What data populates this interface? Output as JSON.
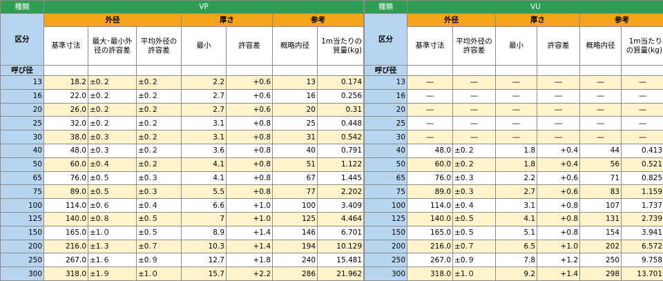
{
  "left": {
    "kind_label": "種類",
    "type_label": "VP",
    "group_outer": "外径",
    "group_thickness": "厚さ",
    "group_reference": "参考",
    "section_label": "区分",
    "col_std": "基準寸法",
    "col_maxmin": "最大･最小外径の許容差",
    "col_avg": "平均外径の許容差",
    "col_min": "最小",
    "col_tol": "許容差",
    "col_inner": "概略内径",
    "col_mass": "1m当たりの質量(kg)",
    "nominal_label": "呼び径",
    "rows": [
      {
        "n": "13",
        "std": "18.2",
        "mm": "±0.２",
        "avg": "±0.２",
        "min": "2.2",
        "tol": "+0.6",
        "id": "13",
        "mass": "0.174"
      },
      {
        "n": "16",
        "std": "22.0",
        "mm": "±0.２",
        "avg": "±0.２",
        "min": "2.7",
        "tol": "+0.6",
        "id": "16",
        "mass": "0.256"
      },
      {
        "n": "20",
        "std": "26.0",
        "mm": "±0.２",
        "avg": "±0.２",
        "min": "2.7",
        "tol": "+0.6",
        "id": "20",
        "mass": "0.31"
      },
      {
        "n": "25",
        "std": "32.0",
        "mm": "±0.２",
        "avg": "±0.２",
        "min": "3.1",
        "tol": "+0.8",
        "id": "25",
        "mass": "0.448"
      },
      {
        "n": "30",
        "std": "38.0",
        "mm": "±0.３",
        "avg": "±0.２",
        "min": "3.1",
        "tol": "+0.8",
        "id": "31",
        "mass": "0.542"
      },
      {
        "n": "40",
        "std": "48.0",
        "mm": "±0.３",
        "avg": "±0.２",
        "min": "3.6",
        "tol": "+0.8",
        "id": "40",
        "mass": "0.791"
      },
      {
        "n": "50",
        "std": "60.0",
        "mm": "±0.４",
        "avg": "±0.２",
        "min": "4.1",
        "tol": "+0.8",
        "id": "51",
        "mass": "1.122"
      },
      {
        "n": "65",
        "std": "76.0",
        "mm": "±0.５",
        "avg": "±0.３",
        "min": "4.1",
        "tol": "+0.8",
        "id": "67",
        "mass": "1.445"
      },
      {
        "n": "75",
        "std": "89.0",
        "mm": "±0.５",
        "avg": "±0.３",
        "min": "5.5",
        "tol": "+0.8",
        "id": "77",
        "mass": "2.202"
      },
      {
        "n": "100",
        "std": "114.0",
        "mm": "±0.６",
        "avg": "±0.４",
        "min": "6.6",
        "tol": "+1.0",
        "id": "100",
        "mass": "3.409"
      },
      {
        "n": "125",
        "std": "140.0",
        "mm": "±0.８",
        "avg": "±0.５",
        "min": "7",
        "tol": "+1.0",
        "id": "125",
        "mass": "4.464"
      },
      {
        "n": "150",
        "std": "165.0",
        "mm": "±1.０",
        "avg": "±0.５",
        "min": "8.9",
        "tol": "+1.4",
        "id": "146",
        "mass": "6.701"
      },
      {
        "n": "200",
        "std": "216.0",
        "mm": "±1.３",
        "avg": "±0.７",
        "min": "10.3",
        "tol": "+1.4",
        "id": "194",
        "mass": "10.129"
      },
      {
        "n": "250",
        "std": "267.0",
        "mm": "±1.６",
        "avg": "±0.９",
        "min": "12.7",
        "tol": "+1.8",
        "id": "240",
        "mass": "15.481"
      },
      {
        "n": "300",
        "std": "318.0",
        "mm": "±1.９",
        "avg": "±1.０",
        "min": "15.7",
        "tol": "+2.2",
        "id": "286",
        "mass": "21.962"
      }
    ]
  },
  "right": {
    "kind_label": "種類",
    "type_label": "VU",
    "group_outer": "外径",
    "group_thickness": "厚さ",
    "group_reference": "参考",
    "section_label": "区分",
    "col_std": "基準寸法",
    "col_avg": "平均外径の許容差",
    "col_min": "最小",
    "col_tol": "許容差",
    "col_inner": "概略内径",
    "col_mass": "1m当たりの質量(kg)",
    "nominal_label": "呼び径",
    "rows": [
      {
        "n": "13",
        "std": "―",
        "avg": "―",
        "min": "―",
        "tol": "―",
        "id": "―",
        "mass": "―"
      },
      {
        "n": "16",
        "std": "―",
        "avg": "―",
        "min": "―",
        "tol": "―",
        "id": "―",
        "mass": "―"
      },
      {
        "n": "20",
        "std": "―",
        "avg": "―",
        "min": "―",
        "tol": "―",
        "id": "―",
        "mass": "―"
      },
      {
        "n": "25",
        "std": "―",
        "avg": "―",
        "min": "―",
        "tol": "―",
        "id": "―",
        "mass": "―"
      },
      {
        "n": "30",
        "std": "―",
        "avg": "―",
        "min": "―",
        "tol": "―",
        "id": "―",
        "mass": "―"
      },
      {
        "n": "40",
        "std": "48.0",
        "avg": "±0.２",
        "min": "1.8",
        "tol": "+0.4",
        "id": "44",
        "mass": "0.413"
      },
      {
        "n": "50",
        "std": "60.0",
        "avg": "±0.２",
        "min": "1.8",
        "tol": "+0.4",
        "id": "56",
        "mass": "0.521"
      },
      {
        "n": "65",
        "std": "76.0",
        "avg": "±0.３",
        "min": "2.2",
        "tol": "+0.6",
        "id": "71",
        "mass": "0.825"
      },
      {
        "n": "75",
        "std": "89.0",
        "avg": "±0.３",
        "min": "2.7",
        "tol": "+0.6",
        "id": "83",
        "mass": "1.159"
      },
      {
        "n": "100",
        "std": "114.0",
        "avg": "±0.４",
        "min": "3.1",
        "tol": "+0.8",
        "id": "107",
        "mass": "1.737"
      },
      {
        "n": "125",
        "std": "140.0",
        "avg": "±0.５",
        "min": "4.1",
        "tol": "+0.8",
        "id": "131",
        "mass": "2.739"
      },
      {
        "n": "150",
        "std": "165.0",
        "avg": "±0.５",
        "min": "5.1",
        "tol": "+0.8",
        "id": "154",
        "mass": "3.941"
      },
      {
        "n": "200",
        "std": "216.0",
        "avg": "±0.７",
        "min": "6.5",
        "tol": "+1.0",
        "id": "202",
        "mass": "6.572"
      },
      {
        "n": "250",
        "std": "267.0",
        "avg": "±0.９",
        "min": "7.8",
        "tol": "+1.2",
        "id": "250",
        "mass": "9.758"
      },
      {
        "n": "300",
        "std": "318.0",
        "avg": "±1.０",
        "min": "9.2",
        "tol": "+1.4",
        "id": "298",
        "mass": "13.701"
      }
    ]
  }
}
